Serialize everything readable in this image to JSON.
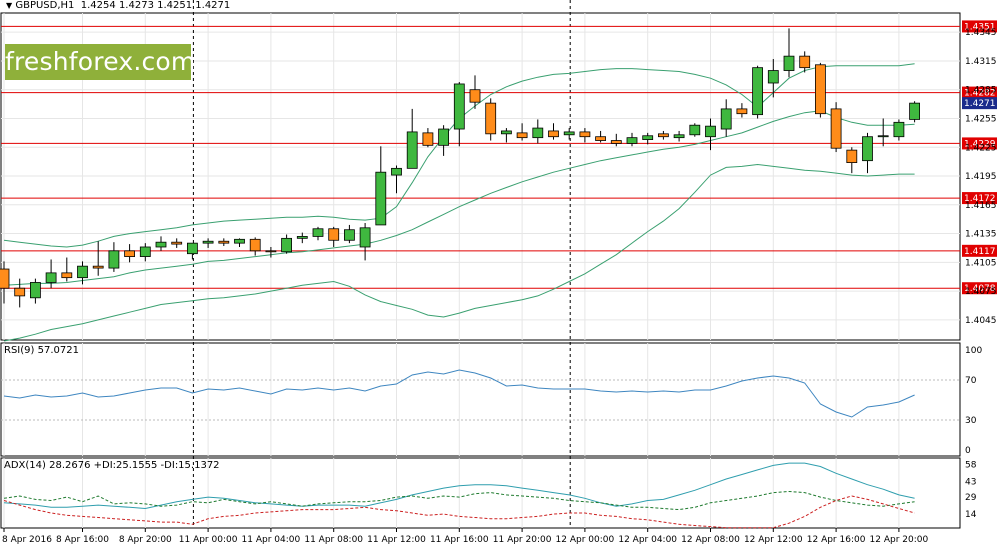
{
  "header": {
    "symbol_line": "GBPUSD,H1  1.4254 1.4273 1.4251 1.4271",
    "rsi_label": "RSI(9) 57.0721",
    "adx_label": "ADX(14) 28.2676 +DI:25.1555 -DI:15.1372"
  },
  "watermark": {
    "text": "freshforex.com"
  },
  "colors": {
    "bull": "#3fb83f",
    "bear": "#ff8c1a",
    "level": "#e00000",
    "band": "#3aa070",
    "rsi": "#3e86c0",
    "adx": "#2f9eae",
    "plus_di": "#1e7a2e",
    "minus_di": "#cc2020",
    "price_tag": "#1a2a8c",
    "watermark_bg": "#8fb03a"
  },
  "chart_data": [
    {
      "type": "candlestick",
      "symbol": "GBPUSD",
      "timeframe": "H1",
      "ohlc_current": {
        "open": 1.4254,
        "high": 1.4273,
        "low": 1.4251,
        "close": 1.4271
      },
      "price_axis_ticks": [
        "1.4345",
        "1.4315",
        "1.4285",
        "1.4255",
        "1.4225",
        "1.4195",
        "1.4165",
        "1.4135",
        "1.4105",
        "1.4075",
        "1.4045"
      ],
      "ylim": [
        1.4024,
        1.4365
      ],
      "x_labels": [
        {
          "label": "8 Apr 2016",
          "index": 0
        },
        {
          "label": "8 Apr 16:00",
          "index": 5
        },
        {
          "label": "8 Apr 20:00",
          "index": 9
        },
        {
          "label": "11 Apr 00:00",
          "index": 13
        },
        {
          "label": "11 Apr 04:00",
          "index": 17
        },
        {
          "label": "11 Apr 08:00",
          "index": 21
        },
        {
          "label": "11 Apr 12:00",
          "index": 25
        },
        {
          "label": "11 Apr 16:00",
          "index": 29
        },
        {
          "label": "11 Apr 20:00",
          "index": 33
        },
        {
          "label": "12 Apr 00:00",
          "index": 37
        },
        {
          "label": "12 Apr 04:00",
          "index": 41
        },
        {
          "label": "12 Apr 08:00",
          "index": 45
        },
        {
          "label": "12 Apr 12:00",
          "index": 49
        },
        {
          "label": "12 Apr 16:00",
          "index": 53
        },
        {
          "label": "12 Apr 20:00",
          "index": 57
        }
      ],
      "separators": [
        12,
        36
      ],
      "levels": [
        {
          "label": "1.4351",
          "value": 1.4351
        },
        {
          "label": "1.4282",
          "value": 1.4282
        },
        {
          "label": "1.4229",
          "value": 1.4229
        },
        {
          "label": "1.4172",
          "value": 1.4172
        },
        {
          "label": "1.4117",
          "value": 1.4117
        },
        {
          "label": "1.4078",
          "value": 1.4078
        }
      ],
      "current_price": {
        "label": "1.4271",
        "value": 1.4271
      },
      "candles": [
        [
          1.4098,
          1.4106,
          1.4062,
          1.4078
        ],
        [
          1.4078,
          1.4088,
          1.4058,
          1.407
        ],
        [
          1.4068,
          1.4088,
          1.4062,
          1.4084
        ],
        [
          1.4084,
          1.4108,
          1.4078,
          1.4094
        ],
        [
          1.4094,
          1.411,
          1.4085,
          1.4089
        ],
        [
          1.4089,
          1.4106,
          1.4082,
          1.4101
        ],
        [
          1.4101,
          1.4127,
          1.4091,
          1.4099
        ],
        [
          1.4099,
          1.4126,
          1.4095,
          1.4117
        ],
        [
          1.4117,
          1.4124,
          1.4105,
          1.4111
        ],
        [
          1.4111,
          1.4125,
          1.4106,
          1.4121
        ],
        [
          1.4121,
          1.4132,
          1.4117,
          1.4126
        ],
        [
          1.4126,
          1.413,
          1.412,
          1.4124
        ],
        [
          1.4114,
          1.4125,
          1.4108,
          1.4125
        ],
        [
          1.4125,
          1.413,
          1.412,
          1.4127
        ],
        [
          1.4127,
          1.413,
          1.4122,
          1.4125
        ],
        [
          1.4125,
          1.413,
          1.4121,
          1.4129
        ],
        [
          1.4129,
          1.4131,
          1.4112,
          1.4117
        ],
        [
          1.4117,
          1.4121,
          1.411,
          1.4116
        ],
        [
          1.4116,
          1.4134,
          1.4114,
          1.413
        ],
        [
          1.413,
          1.4136,
          1.4125,
          1.4132
        ],
        [
          1.4132,
          1.4142,
          1.4128,
          1.414
        ],
        [
          1.414,
          1.4142,
          1.4121,
          1.4128
        ],
        [
          1.4128,
          1.4144,
          1.4125,
          1.4139
        ],
        [
          1.4121,
          1.4146,
          1.4107,
          1.4141
        ],
        [
          1.4144,
          1.4226,
          1.4144,
          1.4199
        ],
        [
          1.4196,
          1.4206,
          1.4177,
          1.4203
        ],
        [
          1.4203,
          1.4265,
          1.4203,
          1.4241
        ],
        [
          1.424,
          1.4245,
          1.4225,
          1.4227
        ],
        [
          1.4227,
          1.4248,
          1.4216,
          1.4244
        ],
        [
          1.4244,
          1.4293,
          1.4226,
          1.4291
        ],
        [
          1.4285,
          1.43,
          1.4265,
          1.4272
        ],
        [
          1.4271,
          1.4276,
          1.4232,
          1.4239
        ],
        [
          1.4239,
          1.4245,
          1.423,
          1.4242
        ],
        [
          1.424,
          1.425,
          1.4232,
          1.4235
        ],
        [
          1.4235,
          1.4254,
          1.4229,
          1.4245
        ],
        [
          1.4242,
          1.425,
          1.4233,
          1.4236
        ],
        [
          1.4238,
          1.4245,
          1.4233,
          1.4241
        ],
        [
          1.4241,
          1.4245,
          1.423,
          1.4236
        ],
        [
          1.4236,
          1.4242,
          1.423,
          1.4232
        ],
        [
          1.4232,
          1.4239,
          1.4226,
          1.4229
        ],
        [
          1.4229,
          1.424,
          1.4226,
          1.4235
        ],
        [
          1.4233,
          1.424,
          1.4228,
          1.4237
        ],
        [
          1.4239,
          1.4242,
          1.4233,
          1.4236
        ],
        [
          1.4235,
          1.4242,
          1.4231,
          1.4238
        ],
        [
          1.4238,
          1.425,
          1.4236,
          1.4248
        ],
        [
          1.4236,
          1.4255,
          1.4222,
          1.4247
        ],
        [
          1.4244,
          1.4275,
          1.4236,
          1.4265
        ],
        [
          1.4265,
          1.4271,
          1.4256,
          1.426
        ],
        [
          1.4259,
          1.431,
          1.4255,
          1.4308
        ],
        [
          1.4292,
          1.4317,
          1.4277,
          1.4305
        ],
        [
          1.4305,
          1.4349,
          1.4298,
          1.432
        ],
        [
          1.432,
          1.4325,
          1.4303,
          1.4308
        ],
        [
          1.4311,
          1.4313,
          1.4256,
          1.426
        ],
        [
          1.4265,
          1.4272,
          1.422,
          1.4224
        ],
        [
          1.4222,
          1.4225,
          1.4198,
          1.4209
        ],
        [
          1.4211,
          1.424,
          1.4198,
          1.4236
        ],
        [
          1.4236,
          1.4255,
          1.4226,
          1.4237
        ],
        [
          1.4236,
          1.4254,
          1.4232,
          1.4251
        ],
        [
          1.4254,
          1.4273,
          1.4251,
          1.4271
        ]
      ],
      "bb_upper": [
        1.4128,
        1.4126,
        1.4124,
        1.4122,
        1.4121,
        1.4123,
        1.4127,
        1.4132,
        1.4135,
        1.4137,
        1.4139,
        1.4141,
        1.4144,
        1.4146,
        1.4148,
        1.4149,
        1.415,
        1.4151,
        1.4152,
        1.4152,
        1.4153,
        1.4152,
        1.415,
        1.4149,
        1.4151,
        1.4163,
        1.4188,
        1.4215,
        1.4236,
        1.4255,
        1.4268,
        1.428,
        1.4288,
        1.4294,
        1.4298,
        1.4301,
        1.4302,
        1.4304,
        1.4306,
        1.4307,
        1.4307,
        1.4306,
        1.4305,
        1.4304,
        1.4301,
        1.4297,
        1.429,
        1.428,
        1.4267,
        1.4282,
        1.4297,
        1.4305,
        1.4309,
        1.431,
        1.431,
        1.431,
        1.431,
        1.431,
        1.4312
      ],
      "bb_middle": [
        1.4081,
        1.4082,
        1.4083,
        1.4083,
        1.4084,
        1.4086,
        1.4088,
        1.409,
        1.4094,
        1.4097,
        1.4099,
        1.4101,
        1.4103,
        1.4106,
        1.4107,
        1.4109,
        1.4111,
        1.4113,
        1.4115,
        1.4116,
        1.4118,
        1.412,
        1.4122,
        1.4124,
        1.4128,
        1.4133,
        1.4139,
        1.4147,
        1.4155,
        1.4163,
        1.417,
        1.4177,
        1.4183,
        1.4189,
        1.4194,
        1.4199,
        1.4203,
        1.4207,
        1.4211,
        1.4214,
        1.4217,
        1.422,
        1.4223,
        1.4225,
        1.4228,
        1.4232,
        1.4236,
        1.424,
        1.4246,
        1.4252,
        1.4257,
        1.4261,
        1.4263,
        1.4256,
        1.4251,
        1.4248,
        1.4248,
        1.4248,
        1.4249
      ],
      "bb_lower": [
        1.4023,
        1.4026,
        1.403,
        1.4035,
        1.4038,
        1.4041,
        1.4045,
        1.4049,
        1.4053,
        1.4057,
        1.4061,
        1.4063,
        1.4065,
        1.4067,
        1.4068,
        1.407,
        1.4072,
        1.4075,
        1.4078,
        1.4081,
        1.4083,
        1.4085,
        1.408,
        1.4071,
        1.4064,
        1.406,
        1.4056,
        1.405,
        1.4048,
        1.4052,
        1.4057,
        1.406,
        1.4063,
        1.4066,
        1.407,
        1.4077,
        1.4085,
        1.4093,
        1.4103,
        1.4113,
        1.4125,
        1.4137,
        1.4148,
        1.4161,
        1.4178,
        1.4196,
        1.4204,
        1.4205,
        1.4207,
        1.4205,
        1.4203,
        1.4201,
        1.42,
        1.4198,
        1.4196,
        1.4195,
        1.4196,
        1.4197,
        1.4197
      ]
    },
    {
      "type": "line",
      "title": "RSI(9) 57.0721",
      "ylim": [
        0,
        100
      ],
      "ticks": [
        "100",
        "70",
        "30",
        "0"
      ],
      "values": [
        54,
        52,
        55,
        53,
        54,
        57,
        53,
        54,
        57,
        60,
        62,
        62,
        57,
        61,
        60,
        62,
        59,
        56,
        61,
        60,
        62,
        60,
        62,
        59,
        64,
        66,
        75,
        78,
        76,
        80,
        77,
        72,
        64,
        65,
        62,
        61,
        61,
        61,
        59,
        58,
        59,
        58,
        59,
        58,
        60,
        60,
        64,
        69,
        72,
        74,
        72,
        67,
        46,
        38,
        33,
        43,
        45,
        48,
        55
      ]
    },
    {
      "type": "line",
      "title": "ADX(14) 28.2676 +DI:25.1555 -DI:15.1372",
      "ylim": [
        0,
        60
      ],
      "ticks": [
        "58",
        "43",
        "29",
        "14"
      ],
      "series": [
        {
          "name": "ADX(14)",
          "values": [
            24,
            23,
            22,
            20,
            20,
            21,
            22,
            21,
            20,
            19,
            22,
            25,
            27,
            29,
            28,
            26,
            24,
            23,
            22,
            21,
            22,
            22,
            22,
            21,
            24,
            27,
            31,
            34,
            37,
            39,
            40,
            40,
            39,
            37,
            35,
            33,
            31,
            28,
            24,
            21,
            23,
            26,
            27,
            31,
            35,
            40,
            45,
            49,
            53,
            57,
            59,
            59,
            56,
            50,
            45,
            40,
            36,
            31,
            28
          ]
        },
        {
          "name": "+DI",
          "values": [
            28,
            30,
            27,
            26,
            29,
            25,
            30,
            23,
            24,
            23,
            21,
            22,
            25,
            24,
            27,
            25,
            23,
            25,
            23,
            21,
            23,
            24,
            25,
            25,
            26,
            29,
            30,
            28,
            30,
            29,
            32,
            33,
            31,
            30,
            29,
            28,
            26,
            25,
            24,
            22,
            20,
            20,
            19,
            18,
            20,
            24,
            26,
            28,
            30,
            33,
            34,
            33,
            29,
            26,
            24,
            22,
            21,
            23,
            25
          ]
        },
        {
          "name": "-DI",
          "values": [
            26,
            22,
            18,
            15,
            13,
            12,
            11,
            10,
            9,
            8,
            7,
            7,
            5,
            10,
            12,
            13,
            15,
            16,
            17,
            18,
            18,
            18,
            19,
            20,
            18,
            17,
            15,
            13,
            14,
            12,
            11,
            10,
            10,
            11,
            12,
            14,
            15,
            15,
            13,
            12,
            10,
            9,
            7,
            5,
            4,
            3,
            2,
            2,
            2,
            2,
            6,
            12,
            20,
            26,
            30,
            27,
            23,
            19,
            15
          ]
        }
      ]
    }
  ]
}
